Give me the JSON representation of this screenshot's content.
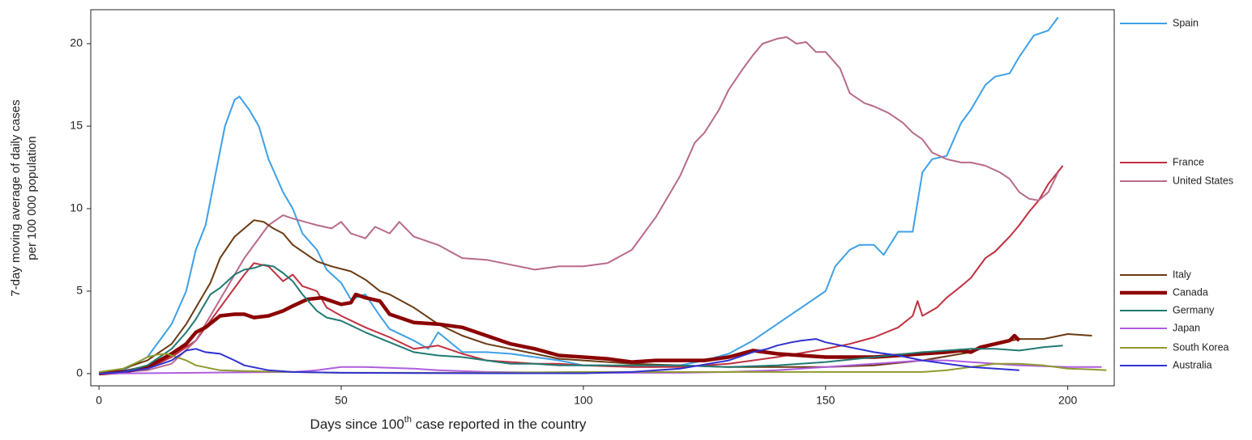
{
  "chart_data": {
    "type": "line",
    "x_label": [
      "Days since 100",
      "th",
      " case reported in the country"
    ],
    "y_label": [
      "7-day moving average of daily cases",
      "per 100 000 population"
    ],
    "xlim": [
      -1.7,
      209.6
    ],
    "ylim": [
      -0.74,
      22.06
    ],
    "xticks": [
      0,
      50,
      100,
      150,
      200
    ],
    "yticks": [
      0,
      5,
      10,
      15,
      20
    ],
    "grid": false,
    "series": [
      {
        "name": "Spain",
        "color": "#3ea0e6",
        "line_width": 2,
        "x": [
          0,
          5,
          10,
          15,
          18,
          20,
          22,
          24,
          26,
          28,
          29,
          31,
          33,
          35,
          38,
          40,
          42,
          45,
          47,
          50,
          52,
          55,
          58,
          60,
          65,
          68,
          70,
          75,
          80,
          85,
          90,
          95,
          100,
          105,
          110,
          115,
          120,
          125,
          130,
          135,
          140,
          145,
          150,
          152,
          155,
          157,
          160,
          162,
          165,
          168,
          170,
          172,
          175,
          178,
          180,
          183,
          185,
          188,
          190,
          193,
          196,
          198
        ],
        "values": [
          0,
          0.2,
          1,
          3,
          5,
          7.5,
          9,
          12,
          15,
          16.6,
          16.8,
          16,
          15,
          13,
          11,
          10,
          8.5,
          7.5,
          6.3,
          5.5,
          4.5,
          4.8,
          3.5,
          2.7,
          2,
          1.5,
          2.5,
          1.3,
          1.3,
          1.2,
          1,
          0.8,
          0.5,
          0.5,
          0.4,
          0.4,
          0.5,
          0.8,
          1.2,
          2,
          3,
          4,
          5,
          6.5,
          7.5,
          7.8,
          7.8,
          7.2,
          8.6,
          8.6,
          12.2,
          13,
          13.2,
          15.2,
          16,
          17.5,
          18,
          18.2,
          19.2,
          20.5,
          20.8,
          21.6
        ]
      },
      {
        "name": "France",
        "color": "#c0303f",
        "line_width": 2,
        "x": [
          0,
          10,
          15,
          20,
          25,
          30,
          32,
          35,
          38,
          40,
          42,
          45,
          47,
          50,
          55,
          60,
          65,
          70,
          75,
          80,
          85,
          90,
          95,
          100,
          110,
          120,
          130,
          140,
          150,
          155,
          160,
          165,
          168,
          169,
          170,
          173,
          175,
          178,
          180,
          183,
          185,
          188,
          190,
          192,
          194,
          196,
          199
        ],
        "values": [
          0,
          0.3,
          1,
          2,
          4,
          6,
          6.7,
          6.5,
          5.6,
          6,
          5.3,
          5,
          4,
          3.5,
          2.8,
          2.2,
          1.5,
          1.7,
          1.2,
          0.8,
          0.7,
          0.6,
          0.6,
          0.5,
          0.4,
          0.4,
          0.6,
          1,
          1.5,
          1.8,
          2.2,
          2.8,
          3.5,
          4.4,
          3.5,
          4,
          4.6,
          5.3,
          5.8,
          7,
          7.4,
          8.3,
          9,
          9.8,
          10.5,
          11.5,
          12.6
        ]
      },
      {
        "name": "United States",
        "color": "#b86a8a",
        "line_width": 2,
        "x": [
          0,
          10,
          15,
          20,
          25,
          30,
          35,
          38,
          40,
          45,
          48,
          50,
          52,
          55,
          57,
          60,
          62,
          65,
          70,
          75,
          80,
          85,
          90,
          95,
          100,
          105,
          110,
          115,
          118,
          120,
          123,
          125,
          128,
          130,
          133,
          135,
          137,
          140,
          142,
          144,
          146,
          148,
          150,
          153,
          155,
          158,
          160,
          163,
          166,
          168,
          170,
          172,
          175,
          178,
          180,
          183,
          186,
          188,
          190,
          192,
          194,
          196,
          198
        ],
        "values": [
          0,
          0.2,
          0.6,
          2,
          4.5,
          7,
          9,
          9.6,
          9.4,
          9,
          8.8,
          9.2,
          8.5,
          8.2,
          8.9,
          8.5,
          9.2,
          8.3,
          7.8,
          7,
          6.9,
          6.6,
          6.3,
          6.5,
          6.5,
          6.7,
          7.5,
          9.5,
          11,
          12,
          14,
          14.6,
          16,
          17.2,
          18.5,
          19.3,
          20,
          20.3,
          20.4,
          20,
          20.1,
          19.5,
          19.5,
          18.5,
          17,
          16.4,
          16.2,
          15.8,
          15.2,
          14.6,
          14.2,
          13.4,
          13,
          12.8,
          12.8,
          12.6,
          12.2,
          11.8,
          11,
          10.6,
          10.5,
          11,
          12.2
        ]
      },
      {
        "name": "Italy",
        "color": "#6b3a12",
        "line_width": 2,
        "x": [
          0,
          5,
          10,
          15,
          18,
          20,
          23,
          25,
          28,
          30,
          32,
          34,
          36,
          38,
          40,
          43,
          45,
          48,
          52,
          55,
          58,
          60,
          65,
          70,
          75,
          80,
          85,
          90,
          95,
          100,
          110,
          120,
          130,
          140,
          150,
          160,
          170,
          180,
          185,
          190,
          195,
          200,
          205
        ],
        "values": [
          0,
          0.3,
          0.8,
          1.8,
          3,
          4,
          5.5,
          7,
          8.3,
          8.8,
          9.3,
          9.2,
          8.8,
          8.5,
          7.8,
          7.2,
          6.8,
          6.5,
          6.2,
          5.7,
          5,
          4.8,
          4,
          3,
          2.3,
          1.8,
          1.5,
          1.2,
          0.9,
          0.8,
          0.6,
          0.5,
          0.4,
          0.4,
          0.4,
          0.5,
          0.8,
          1.3,
          1.8,
          2.1,
          2.1,
          2.4,
          2.3
        ]
      },
      {
        "name": "Canada",
        "color": "#8b0000",
        "line_width": 4.5,
        "x": [
          0,
          5,
          10,
          15,
          18,
          20,
          22,
          25,
          28,
          30,
          32,
          35,
          38,
          40,
          43,
          46,
          48,
          50,
          52,
          53,
          55,
          58,
          60,
          65,
          70,
          75,
          80,
          85,
          90,
          95,
          100,
          105,
          110,
          115,
          120,
          125,
          130,
          135,
          140,
          145,
          150,
          155,
          160,
          165,
          170,
          175,
          178,
          180,
          182,
          185,
          188,
          189,
          190
        ],
        "values": [
          0,
          0.1,
          0.4,
          1.2,
          1.8,
          2.5,
          2.8,
          3.5,
          3.6,
          3.6,
          3.4,
          3.5,
          3.8,
          4.1,
          4.5,
          4.6,
          4.4,
          4.2,
          4.3,
          4.8,
          4.6,
          4.4,
          3.6,
          3.1,
          3,
          2.8,
          2.3,
          1.8,
          1.5,
          1.1,
          1,
          0.9,
          0.7,
          0.8,
          0.8,
          0.8,
          1,
          1.4,
          1.2,
          1.1,
          1,
          1,
          1,
          1.1,
          1.2,
          1.3,
          1.4,
          1.3,
          1.6,
          1.8,
          2,
          2.3,
          2
        ]
      },
      {
        "name": "Germany",
        "color": "#1f7a72",
        "line_width": 2,
        "x": [
          0,
          5,
          10,
          15,
          18,
          20,
          23,
          25,
          28,
          30,
          32,
          34,
          36,
          38,
          40,
          42,
          45,
          47,
          50,
          55,
          60,
          65,
          70,
          75,
          80,
          85,
          90,
          95,
          100,
          110,
          120,
          130,
          140,
          150,
          160,
          170,
          180,
          185,
          190,
          195,
          199
        ],
        "values": [
          0,
          0.1,
          0.5,
          1.5,
          2.5,
          3.3,
          4.8,
          5.2,
          6,
          6.3,
          6.4,
          6.6,
          6.5,
          6.1,
          5.6,
          4.8,
          3.8,
          3.4,
          3.2,
          2.5,
          1.9,
          1.3,
          1.1,
          1,
          0.8,
          0.6,
          0.6,
          0.5,
          0.5,
          0.5,
          0.5,
          0.4,
          0.5,
          0.7,
          1,
          1.3,
          1.5,
          1.5,
          1.4,
          1.6,
          1.7
        ]
      },
      {
        "name": "Japan",
        "color": "#b05ce0",
        "line_width": 2,
        "x": [
          0,
          20,
          40,
          45,
          50,
          55,
          60,
          65,
          70,
          80,
          100,
          120,
          130,
          140,
          150,
          160,
          170,
          175,
          180,
          190,
          200,
          207
        ],
        "values": [
          0,
          0.05,
          0.1,
          0.2,
          0.4,
          0.4,
          0.35,
          0.3,
          0.2,
          0.1,
          0.05,
          0.05,
          0.1,
          0.2,
          0.4,
          0.6,
          0.8,
          0.8,
          0.7,
          0.5,
          0.4,
          0.4
        ]
      },
      {
        "name": "South Korea",
        "color": "#8f9a2e",
        "line_width": 2,
        "x": [
          0,
          5,
          8,
          10,
          12,
          14,
          16,
          18,
          20,
          25,
          30,
          40,
          50,
          60,
          80,
          100,
          120,
          140,
          160,
          170,
          175,
          180,
          185,
          190,
          195,
          200,
          205,
          208
        ],
        "values": [
          0.1,
          0.3,
          0.7,
          1,
          1.15,
          1.2,
          1,
          0.8,
          0.5,
          0.2,
          0.15,
          0.1,
          0.05,
          0.05,
          0.05,
          0.1,
          0.1,
          0.1,
          0.1,
          0.1,
          0.2,
          0.4,
          0.6,
          0.6,
          0.5,
          0.3,
          0.25,
          0.2
        ]
      },
      {
        "name": "Australia",
        "color": "#3030d0",
        "line_width": 2,
        "x": [
          0,
          5,
          10,
          15,
          18,
          20,
          22,
          25,
          28,
          30,
          35,
          40,
          50,
          80,
          100,
          110,
          120,
          130,
          135,
          138,
          140,
          143,
          145,
          148,
          150,
          155,
          160,
          165,
          170,
          175,
          180,
          185,
          190
        ],
        "values": [
          0,
          0.1,
          0.3,
          0.8,
          1.4,
          1.5,
          1.3,
          1.2,
          0.8,
          0.5,
          0.2,
          0.1,
          0.05,
          0.02,
          0.02,
          0.1,
          0.3,
          0.8,
          1.3,
          1.5,
          1.7,
          1.9,
          2,
          2.1,
          1.9,
          1.6,
          1.3,
          1.1,
          0.8,
          0.6,
          0.4,
          0.3,
          0.2
        ]
      }
    ]
  }
}
